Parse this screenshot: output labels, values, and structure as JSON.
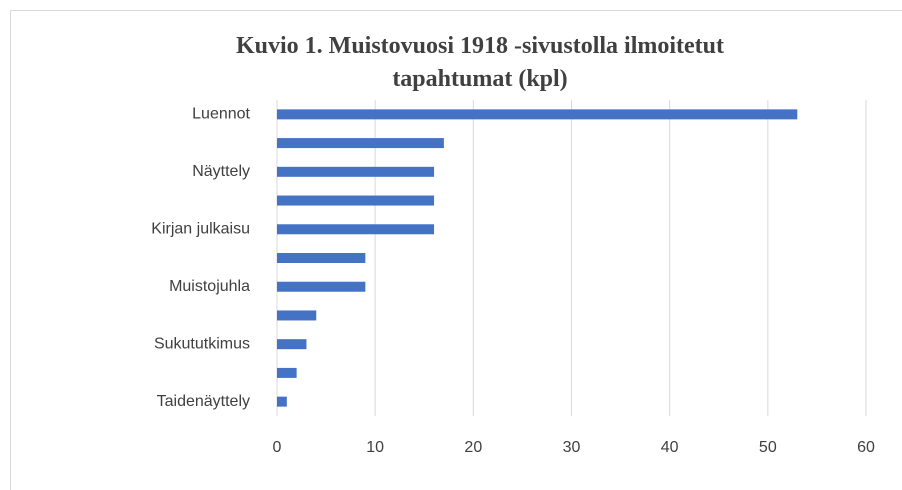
{
  "chart_data": {
    "type": "barh",
    "title": "Kuvio 1. Muistovuosi 1918 -sivustolla ilmoitetut tapahtumat (kpl)",
    "categories": [
      "Luennot",
      null,
      "Näyttely",
      null,
      "Kirjan julkaisu",
      null,
      "Muistojuhla",
      null,
      "Sukututkimus",
      null,
      "Taidenäyttely"
    ],
    "values": [
      53,
      17,
      16,
      16,
      16,
      9,
      9,
      4,
      3,
      2,
      1
    ],
    "color": "#4472c4",
    "xlim": [
      0,
      60
    ],
    "xticks": [
      0,
      10,
      20,
      30,
      40,
      50,
      60
    ],
    "grid": true
  }
}
